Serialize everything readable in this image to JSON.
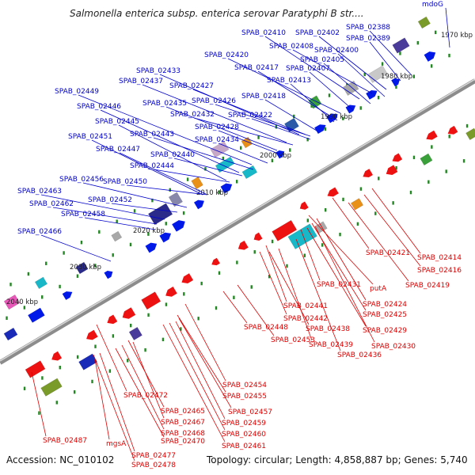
{
  "title": "Salmonella enterica subsp. enterica serovar Paratyphi B str....",
  "footer": {
    "accession": "Accession: NC_010102",
    "summary": "Topology: circular; Length: 4,858,887 bp; Genes: 5,740"
  },
  "colors": {
    "plus_label": "#0000cc",
    "minus_label": "#dd0000",
    "plus_gene": "#0018e8",
    "minus_gene": "#ee1111",
    "backbone": "#8c8c8c",
    "tick": "#228822"
  },
  "ticks": [
    {
      "label": "1970 kbp"
    },
    {
      "label": "1980 kbp"
    },
    {
      "label": "1990 kbp"
    },
    {
      "label": "2000 kbp"
    },
    {
      "label": "2010 kbp"
    },
    {
      "label": "2020 kbp"
    },
    {
      "label": "2030 kbp"
    },
    {
      "label": "2040 kbp"
    }
  ],
  "plus_labels": [
    "mdoG",
    "SPAB_02388",
    "SPAB_02389",
    "SPAB_02402",
    "SPAB_02410",
    "SPAB_02408",
    "SPAB_02400",
    "SPAB_02405",
    "SPAB_02420",
    "SPAB_02407",
    "SPAB_02417",
    "SPAB_02413",
    "SPAB_02433",
    "SPAB_02437",
    "SPAB_02427",
    "SPAB_02449",
    "SPAB_02426",
    "SPAB_02418",
    "SPAB_02435",
    "SPAB_02446",
    "SPAB_02432",
    "SPAB_02422",
    "SPAB_02445",
    "SPAB_02428",
    "SPAB_02443",
    "SPAB_02451",
    "SPAB_02434",
    "SPAB_02447",
    "SPAB_02440",
    "SPAB_02444",
    "SPAB_02456",
    "SPAB_02450",
    "SPAB_02463",
    "SPAB_02452",
    "SPAB_02462",
    "SPAB_02458",
    "SPAB_02466"
  ],
  "minus_labels": [
    "SPAB_02421",
    "SPAB_02414",
    "SPAB_02416",
    "SPAB_02419",
    "SPAB_02431",
    "putA",
    "SPAB_02441",
    "SPAB_02424",
    "SPAB_02425",
    "SPAB_02442",
    "SPAB_02448",
    "SPAB_02438",
    "SPAB_02429",
    "SPAB_02453",
    "SPAB_02439",
    "SPAB_02430",
    "SPAB_02436",
    "SPAB_02454",
    "SPAB_02455",
    "SPAB_02472",
    "SPAB_02457",
    "SPAB_02465",
    "SPAB_02459",
    "SPAB_02467",
    "SPAB_02468",
    "SPAB_02460",
    "SPAB_02470",
    "SPAB_02461",
    "SPAB_02487",
    "mgsA",
    "SPAB_02477",
    "SPAB_02478"
  ]
}
